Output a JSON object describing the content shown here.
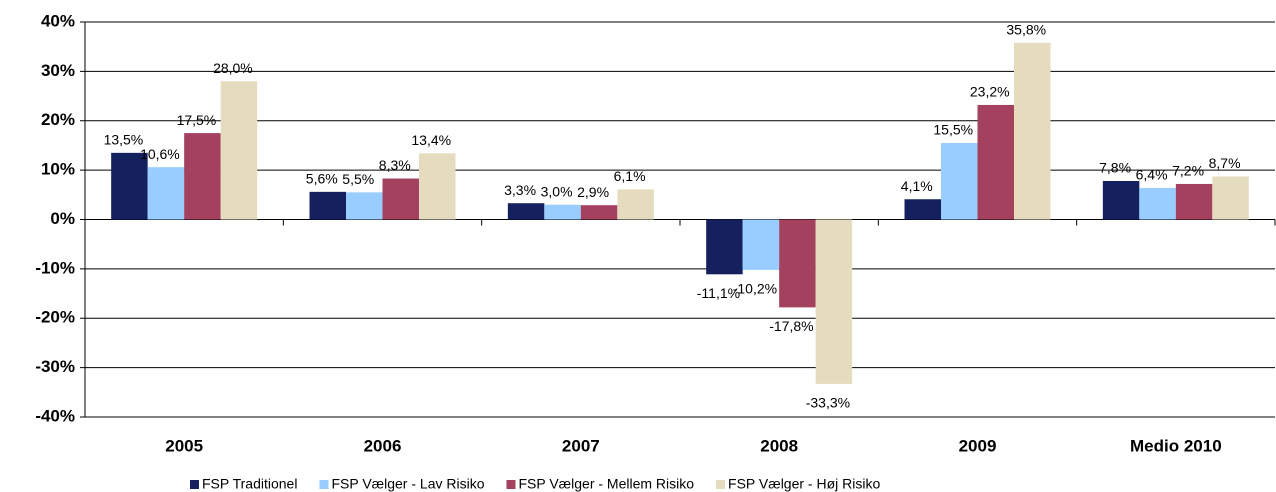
{
  "chart_data": {
    "type": "bar",
    "categories": [
      "2005",
      "2006",
      "2007",
      "2008",
      "2009",
      "Medio 2010"
    ],
    "series": [
      {
        "name": "FSP Traditionel",
        "color": "#14215e",
        "values": [
          13.5,
          5.6,
          3.3,
          -11.1,
          4.1,
          7.8
        ],
        "value_labels": [
          "13,5%",
          "5,6%",
          "3,3%",
          "-11,1%",
          "4,1%",
          "7,8%"
        ]
      },
      {
        "name": "FSP Vælger - Lav Risiko",
        "color": "#99ccff",
        "values": [
          10.6,
          5.5,
          3.0,
          -10.2,
          15.5,
          6.4
        ],
        "value_labels": [
          "10,6%",
          "5,5%",
          "3,0%",
          "-10,2%",
          "15,5%",
          "6,4%"
        ]
      },
      {
        "name": "FSP Vælger - Mellem Risiko",
        "color": "#a3415f",
        "values": [
          17.5,
          8.3,
          2.9,
          -17.8,
          23.2,
          7.2
        ],
        "value_labels": [
          "17,5%",
          "8,3%",
          "2,9%",
          "-17,8%",
          "23,2%",
          "7,2%"
        ]
      },
      {
        "name": "FSP Vælger - Høj Risiko",
        "color": "#e5dcbf",
        "values": [
          28.0,
          13.4,
          6.1,
          -33.3,
          35.8,
          8.7
        ],
        "value_labels": [
          "28,0%",
          "13,4%",
          "6,1%",
          "-33,3%",
          "35,8%",
          "8,7%"
        ]
      }
    ],
    "ylim": [
      -40,
      40
    ],
    "yticks": [
      {
        "value": -40,
        "label": "-40%"
      },
      {
        "value": -30,
        "label": "-30%"
      },
      {
        "value": -20,
        "label": "-20%"
      },
      {
        "value": -10,
        "label": "-10%"
      },
      {
        "value": 0,
        "label": "0%"
      },
      {
        "value": 10,
        "label": "10%"
      },
      {
        "value": 20,
        "label": "20%"
      },
      {
        "value": 30,
        "label": "30%"
      },
      {
        "value": 40,
        "label": "40%"
      }
    ],
    "grid": true,
    "legend": "bottom"
  }
}
